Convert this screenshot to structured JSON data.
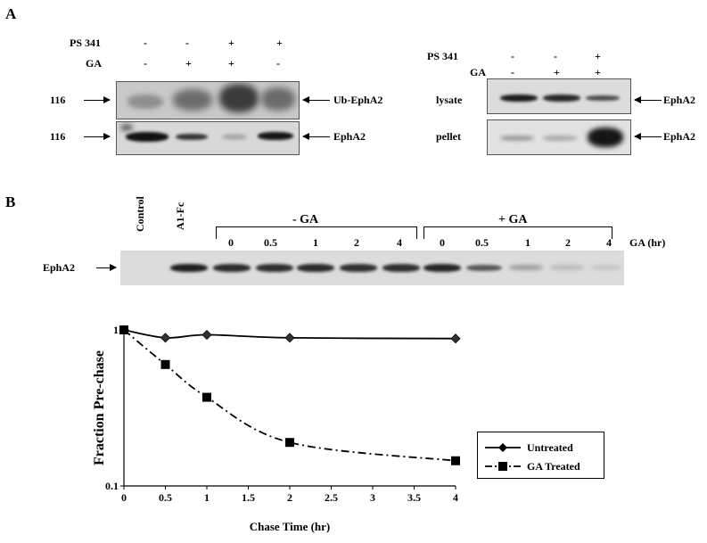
{
  "panelA": {
    "letter": "A",
    "left": {
      "rows": [
        {
          "label": "PS 341",
          "values": [
            "-",
            "-",
            "+",
            "+"
          ]
        },
        {
          "label": "GA",
          "values": [
            "-",
            "+",
            "+",
            "-"
          ]
        }
      ],
      "mw_top": "116",
      "mw_bottom": "116",
      "label_top": "Ub-EphA2",
      "label_bottom": "EphA2"
    },
    "right": {
      "rows": [
        {
          "label": "PS 341",
          "values": [
            "-",
            "-",
            "+"
          ]
        },
        {
          "label": "GA",
          "values": [
            "-",
            "+",
            "+"
          ]
        }
      ],
      "blot_top": "lysate",
      "blot_bottom": "pellet",
      "label_top": "EphA2",
      "label_bottom": "EphA2"
    }
  },
  "panelB": {
    "letter": "B",
    "lane_control": "Control",
    "lane_a1fc": "A1-Fc",
    "group_minus": "- GA",
    "group_plus": "+ GA",
    "timepoints_minus": [
      "0",
      "0.5",
      "1",
      "2",
      "4"
    ],
    "timepoints_plus": [
      "0",
      "0.5",
      "1",
      "2",
      "4"
    ],
    "time_axis_label": "GA (hr)",
    "gel_label": "EphA2"
  },
  "chart_data": {
    "type": "line",
    "title": "",
    "xlabel": "Chase Time (hr)",
    "ylabel": "Fraction Pre-chase",
    "x_scale": "linear",
    "y_scale": "log",
    "xlim": [
      0,
      4
    ],
    "ylim": [
      0.1,
      1
    ],
    "x_ticks": [
      "0",
      "0.5",
      "1",
      "1.5",
      "2",
      "2.5",
      "3",
      "3.5",
      "4"
    ],
    "y_ticks": [
      "0.1",
      "1"
    ],
    "legend_position": "right",
    "series": [
      {
        "name": "Untreated",
        "marker": "diamond",
        "line": "solid",
        "x": [
          0,
          0.5,
          1,
          2,
          4
        ],
        "y": [
          1.0,
          0.89,
          0.93,
          0.89,
          0.88
        ]
      },
      {
        "name": "GA Treated",
        "marker": "square",
        "line": "dash-dot",
        "x": [
          0,
          0.5,
          1,
          2,
          4
        ],
        "y": [
          1.0,
          0.6,
          0.37,
          0.19,
          0.145
        ]
      }
    ]
  }
}
